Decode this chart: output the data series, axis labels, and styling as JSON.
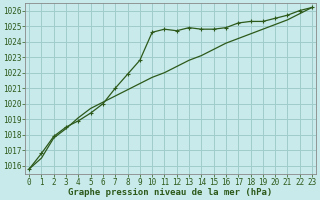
{
  "x": [
    0,
    1,
    2,
    3,
    4,
    5,
    6,
    7,
    8,
    9,
    10,
    11,
    12,
    13,
    14,
    15,
    16,
    17,
    18,
    19,
    20,
    21,
    22,
    23
  ],
  "series_marker": [
    1015.8,
    1016.8,
    1017.9,
    1018.5,
    1018.9,
    1019.4,
    1020.0,
    1021.0,
    1021.9,
    1022.8,
    1024.6,
    1024.8,
    1024.7,
    1024.9,
    1024.8,
    1024.8,
    1024.9,
    1025.2,
    1025.3,
    1025.3,
    1025.5,
    1025.7,
    1026.0,
    1026.2
  ],
  "series_smooth": [
    1015.8,
    1016.5,
    1017.8,
    1018.4,
    1019.1,
    1019.7,
    1020.1,
    1020.5,
    1020.9,
    1021.3,
    1021.7,
    1022.0,
    1022.4,
    1022.8,
    1023.1,
    1023.5,
    1023.9,
    1024.2,
    1024.5,
    1024.8,
    1025.1,
    1025.4,
    1025.8,
    1026.2
  ],
  "ylim_min": 1015.5,
  "ylim_max": 1026.5,
  "yticks": [
    1016,
    1017,
    1018,
    1019,
    1020,
    1021,
    1022,
    1023,
    1024,
    1025,
    1026
  ],
  "xlabel": "Graphe pression niveau de la mer (hPa)",
  "line_color": "#2d5a1b",
  "bg_color": "#c8eaea",
  "grid_color": "#a0cccc",
  "tick_color": "#2d5a1b",
  "label_fontsize": 6.5,
  "tick_fontsize": 5.5
}
